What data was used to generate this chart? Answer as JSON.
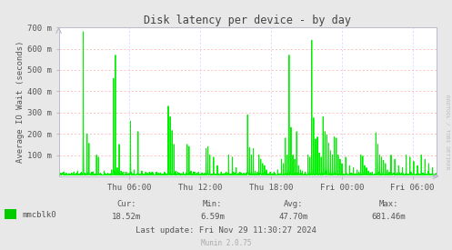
{
  "title": "Disk latency per device - by day",
  "ylabel": "Average IO Wait (seconds)",
  "bg_color": "#e8e8e8",
  "plot_bg_color": "#ffffff",
  "line_color": "#00ee00",
  "grid_color_h": "#ffaaaa",
  "grid_color_v": "#ccccff",
  "ytick_vals": [
    100,
    200,
    300,
    400,
    500,
    600,
    700
  ],
  "ylim": [
    0,
    700
  ],
  "xtick_labels": [
    "Thu 06:00",
    "Thu 12:00",
    "Thu 18:00",
    "Fri 00:00",
    "Fri 06:00"
  ],
  "legend_label": "mmcblk0",
  "legend_color": "#00cc00",
  "cur_label": "Cur:",
  "cur_val": "18.52m",
  "min_label": "Min:",
  "min_val": "6.59m",
  "avg_label": "Avg:",
  "avg_val": "47.70m",
  "max_label": "Max:",
  "max_val": "681.46m",
  "last_update": "Last update: Fri Nov 29 11:30:27 2024",
  "munin_version": "Munin 2.0.75",
  "rrdtool_label": "RRDTOOL / TOBI OETIKER",
  "title_color": "#444444",
  "text_color": "#555555",
  "axis_color": "#bbbbcc",
  "spine_color": "#bbbbcc"
}
